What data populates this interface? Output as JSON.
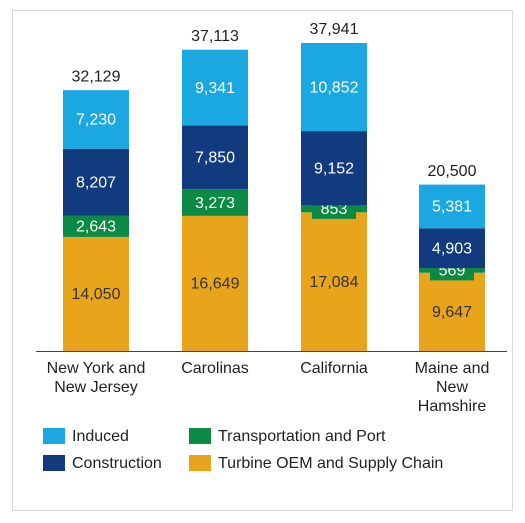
{
  "chart_data": {
    "type": "stacked_bar",
    "categories": [
      "New York and New Jersey",
      "Carolinas",
      "California",
      "Maine and New Hamshire"
    ],
    "series": [
      {
        "name": "Turbine OEM and Supply Chain",
        "color": "#e8a51c",
        "values": [
          14050,
          16649,
          17084,
          9647
        ],
        "value_labels": [
          "14,050",
          "16,649",
          "17,084",
          "9,647"
        ]
      },
      {
        "name": "Transportation and Port",
        "color": "#0b8a43",
        "values": [
          2643,
          3273,
          853,
          569
        ],
        "value_labels": [
          "2,643",
          "3,273",
          "853",
          "569"
        ]
      },
      {
        "name": "Construction",
        "color": "#123a7e",
        "values": [
          8207,
          7850,
          9152,
          4903
        ],
        "value_labels": [
          "8,207",
          "7,850",
          "9,152",
          "4,903"
        ]
      },
      {
        "name": "Induced",
        "color": "#1ba8e1",
        "values": [
          7230,
          9341,
          10852,
          5381
        ],
        "value_labels": [
          "7,230",
          "9,341",
          "10,852",
          "5,381"
        ]
      }
    ],
    "totals": [
      32129,
      37113,
      37941,
      20500
    ],
    "total_labels": [
      "32,129",
      "37,113",
      "37,941",
      "20,500"
    ]
  }
}
